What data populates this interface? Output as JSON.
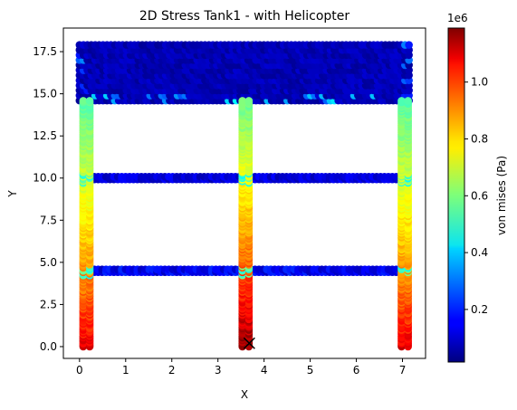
{
  "chart_data": {
    "type": "scatter",
    "title": "2D Stress Tank1 - with Helicopter",
    "xlabel": "X",
    "ylabel": "Y",
    "xlim": [
      -0.35,
      7.5
    ],
    "ylim": [
      -0.7,
      18.9
    ],
    "xticks": [
      0,
      1,
      2,
      3,
      4,
      5,
      6,
      7
    ],
    "yticks": [
      0.0,
      2.5,
      5.0,
      7.5,
      10.0,
      12.5,
      15.0,
      17.5
    ],
    "xtick_labels": [
      "0",
      "1",
      "2",
      "3",
      "4",
      "5",
      "6",
      "7"
    ],
    "ytick_labels": [
      "0.0",
      "2.5",
      "5.0",
      "7.5",
      "10.0",
      "12.5",
      "15.0",
      "17.5"
    ],
    "colormap": "jet",
    "colorbar": {
      "label": "von mises (Pa)",
      "min": 15000,
      "max": 1190000,
      "ticks": [
        200000,
        400000,
        600000,
        800000,
        1000000
      ],
      "tick_labels": [
        "0.2",
        "0.4",
        "0.6",
        "0.8",
        "1.0"
      ],
      "scale_label": "1e6"
    },
    "grid": false,
    "columns": [
      {
        "x": 0.15,
        "y_range": [
          0.0,
          14.6
        ],
        "stress_bottom": 1080000,
        "stress_top": 560000
      },
      {
        "x": 3.6,
        "y_range": [
          0.0,
          14.6
        ],
        "stress_bottom": 1190000,
        "stress_top": 580000
      },
      {
        "x": 7.05,
        "y_range": [
          0.0,
          14.6
        ],
        "stress_bottom": 1080000,
        "stress_top": 560000
      }
    ],
    "beams": [
      {
        "y": 4.5,
        "x_range": [
          0.15,
          7.05
        ],
        "stress": 150000
      },
      {
        "y": 10.0,
        "x_range": [
          0.15,
          7.05
        ],
        "stress": 120000
      }
    ],
    "top_block": {
      "x_range": [
        0.0,
        7.2
      ],
      "y_range": [
        14.6,
        18.0
      ],
      "stress": 80000
    },
    "marker": {
      "x": 3.68,
      "y": 0.2,
      "symbol": "x"
    }
  }
}
